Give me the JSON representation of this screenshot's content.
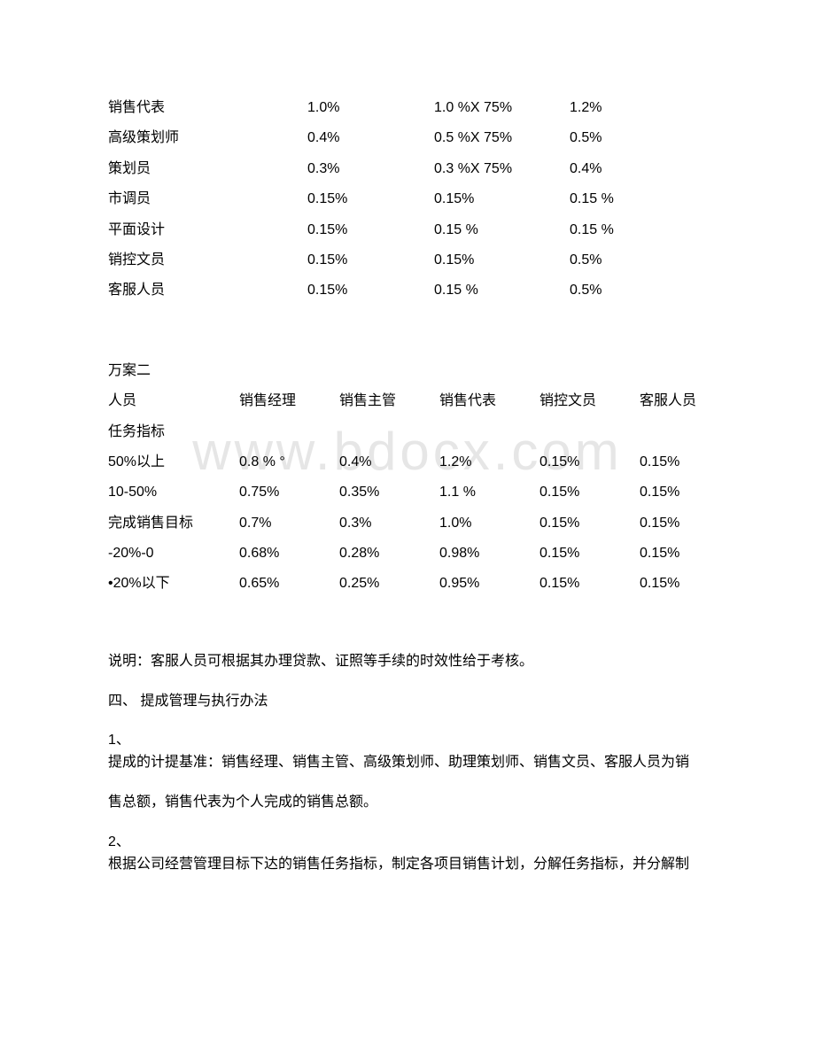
{
  "table1": {
    "rows": [
      {
        "label": "销售代表",
        "v1": "1.0%",
        "v2": "1.0 %X 75%",
        "v3": "1.2%"
      },
      {
        "label": "高级策划师",
        "v1": "0.4%",
        "v2": "0.5 %X 75%",
        "v3": "0.5%"
      },
      {
        "label": "策划员",
        "v1": "0.3%",
        "v2": "0.3 %X 75%",
        "v3": "0.4%"
      },
      {
        "label": "市调员",
        "v1": "0.15%",
        "v2": "0.15%",
        "v3": "0.15 %"
      },
      {
        "label": "平面设计",
        "v1": "0.15%",
        "v2": "0.15 %",
        "v3": "0.15 %"
      },
      {
        "label": "销控文员",
        "v1": "0.15%",
        "v2": "0.15%",
        "v3": "0.5%"
      },
      {
        "label": "客服人员",
        "v1": "0.15%",
        "v2": "0.15 %",
        "v3": "0.5%"
      }
    ]
  },
  "table2": {
    "title": "万案二",
    "headers": [
      "人员",
      "销售经理",
      "销售主管",
      "销售代表",
      "销控文员",
      "客服人员"
    ],
    "subheader": "任务指标",
    "rows": [
      {
        "c1": "50%以上",
        "c2": "0.8 % °",
        "c3": "0.4%",
        "c4": "1.2%",
        "c5": "0.15%",
        "c6": "0.15%"
      },
      {
        "c1": "10-50%",
        "c2": "0.75%",
        "c3": "0.35%",
        "c4": "1.1 %",
        "c5": "0.15%",
        "c6": "0.15%"
      },
      {
        "c1": "完成销售目标",
        "c2": "0.7%",
        "c3": "0.3%",
        "c4": "1.0%",
        "c5": "0.15%",
        "c6": "0.15%"
      },
      {
        "c1": "-20%-0",
        "c2": "0.68%",
        "c3": "0.28%",
        "c4": "0.98%",
        "c5": "0.15%",
        "c6": "0.15%"
      },
      {
        "c1": "•20%以下",
        "c2": "0.65%",
        "c3": "0.25%",
        "c4": "0.95%",
        "c5": "0.15%",
        "c6": "0.15%"
      }
    ]
  },
  "paragraphs": {
    "p1": "说明：客服人员可根据其办理贷款、证照等手续的时效性给于考核。",
    "p2": "四、 提成管理与执行办法",
    "p3a": "1、",
    "p3b": "提成的计提基准：销售经理、销售主管、高级策划师、助理策划师、销售文员、客服人员为销",
    "p4": "售总额，销售代表为个人完成的销售总额。",
    "p5a": "2、",
    "p5b": "根据公司经营管理目标下达的销售任务指标，制定各项目销售计划，分解任务指标，并分解制"
  },
  "watermark": "www.bdocx.com"
}
